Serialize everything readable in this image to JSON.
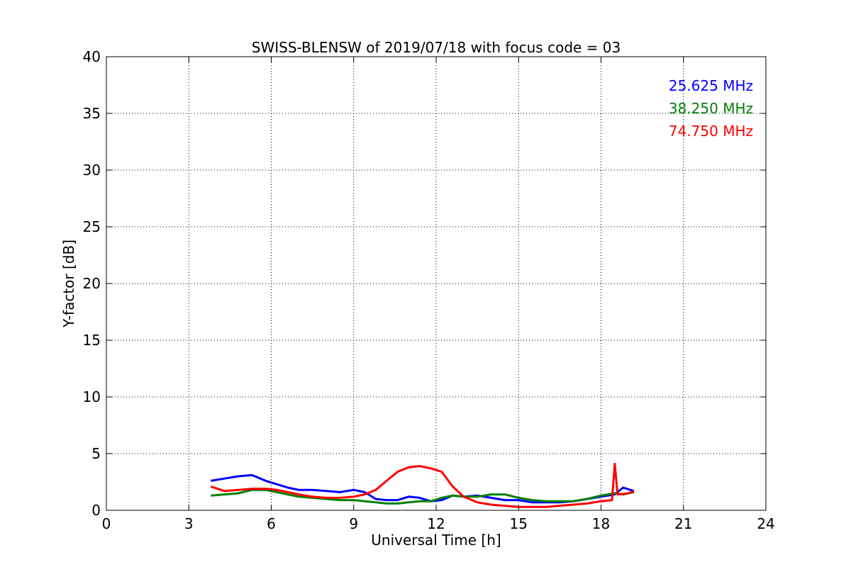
{
  "chart_data": {
    "type": "line",
    "title": "SWISS-BLENSW of 2019/07/18 with focus code = 03",
    "xlabel": "Universal Time [h]",
    "ylabel": "Y-factor [dB]",
    "xlim": [
      0,
      24
    ],
    "ylim": [
      0,
      40
    ],
    "xticks": [
      0,
      3,
      6,
      9,
      12,
      15,
      18,
      21,
      24
    ],
    "yticks": [
      0,
      5,
      10,
      15,
      20,
      25,
      30,
      35,
      40
    ],
    "xtick_labels": [
      "0",
      "3",
      "6",
      "9",
      "12",
      "15",
      "18",
      "21",
      "24"
    ],
    "ytick_labels": [
      "0",
      "5",
      "10",
      "15",
      "20",
      "25",
      "30",
      "35",
      "40"
    ],
    "grid": true,
    "legend_position": "top-right",
    "series": [
      {
        "name": "25.625 MHz",
        "color": "#0000ff",
        "x": [
          3.8,
          4.3,
          4.8,
          5.3,
          5.8,
          6.2,
          6.6,
          7.0,
          7.5,
          8.0,
          8.5,
          9.0,
          9.4,
          9.8,
          10.2,
          10.6,
          11.0,
          11.4,
          11.8,
          12.2,
          12.6,
          13.0,
          13.5,
          14.0,
          14.5,
          15.0,
          15.5,
          16.0,
          16.5,
          17.0,
          17.5,
          18.0,
          18.5,
          18.8,
          19.2
        ],
        "y": [
          2.6,
          2.8,
          3.0,
          3.1,
          2.6,
          2.3,
          2.0,
          1.8,
          1.8,
          1.7,
          1.6,
          1.8,
          1.6,
          1.0,
          0.9,
          0.9,
          1.2,
          1.1,
          0.8,
          0.9,
          1.3,
          1.2,
          1.3,
          1.1,
          0.9,
          0.9,
          0.7,
          0.7,
          0.7,
          0.8,
          1.0,
          1.2,
          1.4,
          2.0,
          1.7
        ]
      },
      {
        "name": "38.250 MHz",
        "color": "#008000",
        "x": [
          3.8,
          4.3,
          4.8,
          5.3,
          5.8,
          6.2,
          6.6,
          7.0,
          7.5,
          8.0,
          8.5,
          9.0,
          9.4,
          9.8,
          10.2,
          10.6,
          11.0,
          11.4,
          11.8,
          12.2,
          12.6,
          13.0,
          13.5,
          14.0,
          14.5,
          15.0,
          15.5,
          16.0,
          16.5,
          17.0,
          17.5,
          18.0,
          18.5,
          18.8,
          19.2
        ],
        "y": [
          1.3,
          1.4,
          1.5,
          1.8,
          1.8,
          1.6,
          1.4,
          1.2,
          1.1,
          1.0,
          0.9,
          0.9,
          0.8,
          0.7,
          0.6,
          0.6,
          0.7,
          0.8,
          0.8,
          1.1,
          1.3,
          1.2,
          1.2,
          1.4,
          1.4,
          1.1,
          0.9,
          0.8,
          0.8,
          0.8,
          1.0,
          1.3,
          1.5,
          1.4,
          1.6
        ]
      },
      {
        "name": "74.750 MHz",
        "color": "#ff0000",
        "x": [
          3.8,
          4.3,
          4.8,
          5.3,
          5.8,
          6.2,
          6.6,
          7.0,
          7.5,
          8.0,
          8.5,
          9.0,
          9.4,
          9.8,
          10.2,
          10.6,
          11.0,
          11.4,
          11.8,
          12.2,
          12.6,
          13.0,
          13.5,
          14.0,
          14.5,
          15.0,
          15.5,
          16.0,
          16.5,
          17.0,
          17.5,
          18.0,
          18.4,
          18.5,
          18.6,
          19.0,
          19.2
        ],
        "y": [
          2.1,
          1.7,
          1.8,
          1.9,
          1.9,
          1.8,
          1.6,
          1.4,
          1.2,
          1.1,
          1.1,
          1.2,
          1.4,
          1.8,
          2.6,
          3.4,
          3.8,
          3.9,
          3.7,
          3.4,
          2.1,
          1.2,
          0.7,
          0.5,
          0.4,
          0.3,
          0.3,
          0.3,
          0.4,
          0.5,
          0.6,
          0.8,
          0.9,
          4.1,
          1.4,
          1.5,
          1.7
        ]
      }
    ]
  }
}
